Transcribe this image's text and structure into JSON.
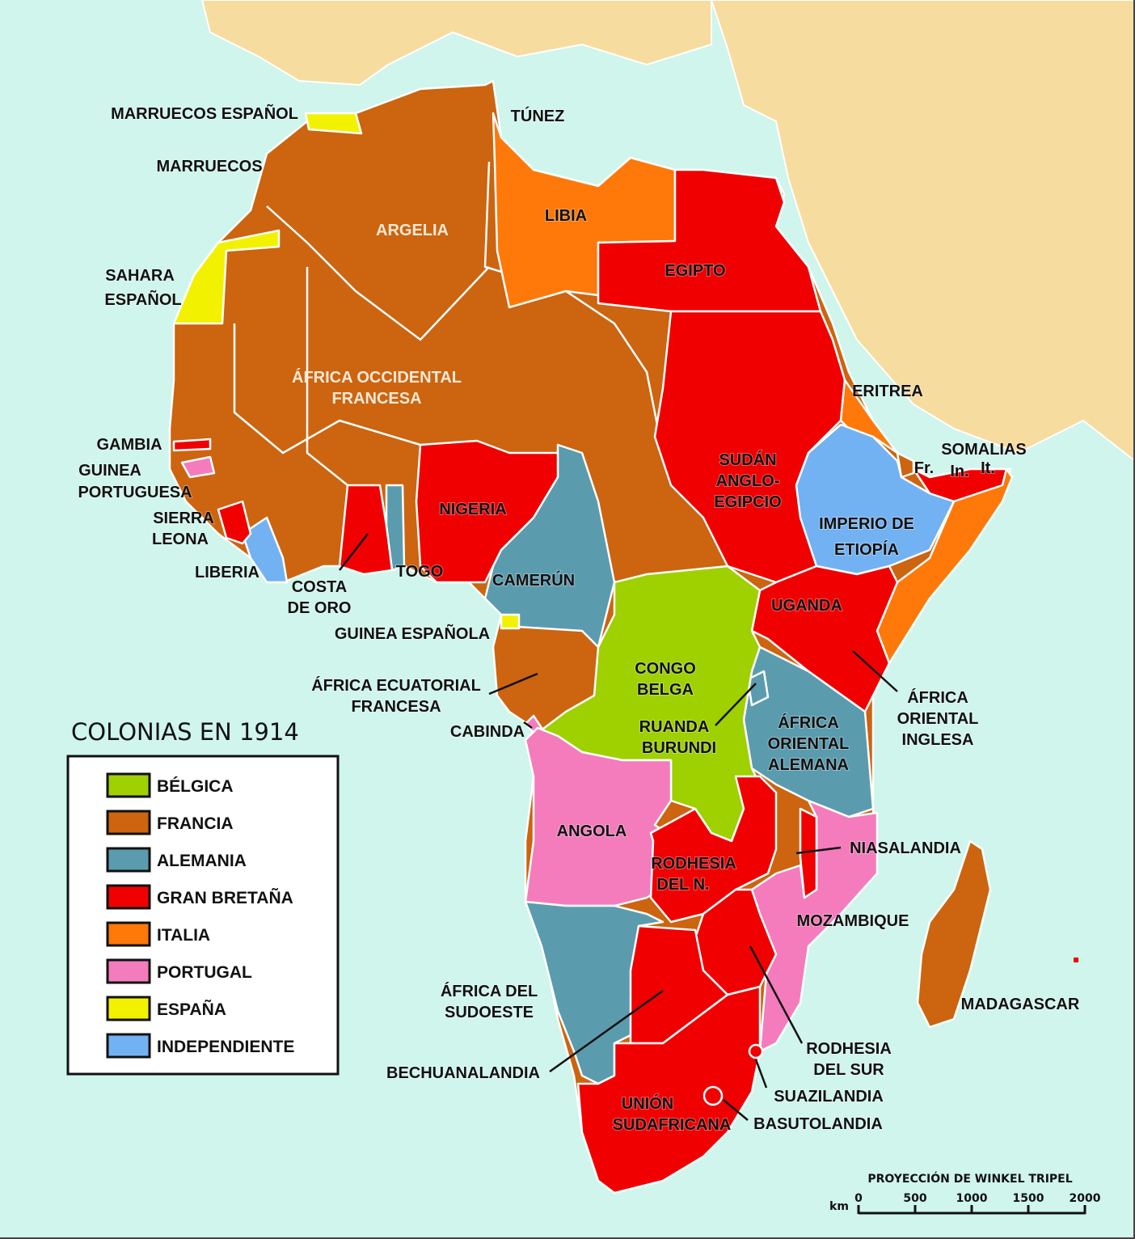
{
  "title": "COLONIAS EN 1914",
  "colors": {
    "sea": "#cff5ec",
    "other_land": "#f7dca0",
    "border": "#ffffff"
  },
  "legend": [
    {
      "label": "BÉLGICA",
      "color": "#9fd000"
    },
    {
      "label": "FRANCIA",
      "color": "#cc6410"
    },
    {
      "label": "ALEMANIA",
      "color": "#5b9bae"
    },
    {
      "label": "GRAN BRETAÑA",
      "color": "#f00000"
    },
    {
      "label": "ITALIA",
      "color": "#ff780a"
    },
    {
      "label": "PORTUGAL",
      "color": "#f47cbc"
    },
    {
      "label": "ESPAÑA",
      "color": "#f2f200"
    },
    {
      "label": "INDEPENDIENTE",
      "color": "#72b2f2"
    }
  ],
  "labels": {
    "marruecos_espanol": "MARRUECOS ESPAÑOL",
    "tunez": "TÚNEZ",
    "marruecos": "MARRUECOS",
    "argelia": "ARGELIA",
    "libia": "LIBIA",
    "egipto": "EGIPTO",
    "sahara_1": "SAHARA",
    "sahara_2": "ESPAÑOL",
    "aof_1": "ÁFRICA OCCIDENTAL",
    "aof_2": "FRANCESA",
    "eritrea": "ERITREA",
    "somalias": "SOMALIAS",
    "som_fr": "Fr.",
    "som_in": "In.",
    "som_it": "It.",
    "gambia": "GAMBIA",
    "gp_1": "GUINEA",
    "gp_2": "PORTUGUESA",
    "sl_1": "SIERRA",
    "sl_2": "LEONA",
    "liberia": "LIBERIA",
    "nigeria": "NIGERIA",
    "sudan_1": "SUDÁN",
    "sudan_2": "ANGLO-",
    "sudan_3": "EGIPCIO",
    "etiopia_1": "IMPERIO DE",
    "etiopia_2": "ETIOPÍA",
    "co_1": "COSTA",
    "co_2": "DE ORO",
    "togo": "TOGO",
    "camerun": "CAMERÚN",
    "uganda": "UGANDA",
    "guinea_espanola": "GUINEA ESPAÑOLA",
    "aef_1": "ÁFRICA ECUATORIAL",
    "aef_2": "FRANCESA",
    "congo_1": "CONGO",
    "congo_2": "BELGA",
    "aoi_1": "ÁFRICA",
    "aoi_2": "ORIENTAL",
    "aoi_3": "INGLESA",
    "cabinda": "CABINDA",
    "rb_1": "RUANDA",
    "rb_2": "BURUNDI",
    "aoa_1": "ÁFRICA",
    "aoa_2": "ORIENTAL",
    "aoa_3": "ALEMANA",
    "angola": "ANGOLA",
    "niasalandia": "NIASALANDIA",
    "rn_1": "RODHESIA",
    "rn_2": "DEL N.",
    "mozambique": "MOZAMBIQUE",
    "aso_1": "ÁFRICA DEL",
    "aso_2": "SUDOESTE",
    "madagascar": "MADAGASCAR",
    "rs_1": "RODHESIA",
    "rs_2": "DEL SUR",
    "bechuanalandia": "BECHUANALANDIA",
    "suazilandia": "SUAZILANDIA",
    "us_1": "UNIÓN",
    "us_2": "SUDAFRICANA",
    "basutolandia": "BASUTOLANDIA"
  },
  "scale": {
    "projection": "PROYECCIÓN DE WINKEL TRIPEL",
    "unit": "km",
    "ticks": [
      "0",
      "500",
      "1000",
      "1500",
      "2000"
    ]
  }
}
